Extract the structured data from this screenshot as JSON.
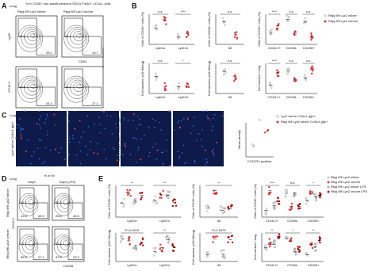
{
  "A": {
    "label": "A",
    "tissue": "Lung",
    "header": "% in CD45+ non-autofluorescent SSChi F4/80+ CD11c- cells",
    "groups": [
      "Rbpj fl/fl Lyz2 wt/cre",
      "Rbpj fl/fl Lyz2 cre/cre"
    ],
    "axes": [
      "Ly6C",
      "CD64",
      "CD16.2",
      "CD206"
    ],
    "gates": [
      [
        "44.5",
        "25.0"
      ],
      [
        "51.1",
        "19.7"
      ],
      [
        "10.9",
        "44.3"
      ],
      [
        "12.1",
        "27.1"
      ]
    ]
  },
  "B": {
    "label": "B",
    "legend": [
      "Rbpj fl/fl Lyz2 wt/cre",
      "Rbpj fl/fl Lyz2 cre/cre"
    ],
    "plots": [
      {
        "ylabel": "Cells of CD45+ cells (%)",
        "categories": [
          "Ly6Clo",
          "Ly6Chi"
        ],
        "sig": [
          "n.s.",
          "****"
        ]
      },
      {
        "ylabel": "Cells of CD45+ cells (%)",
        "categories": [
          "IM"
        ],
        "sig": [
          "n.s."
        ]
      },
      {
        "ylabel": "Cells of CD45+ cells (%)",
        "categories": [
          "CD16.2+",
          "CD206-",
          "CD206+"
        ],
        "sig": [
          "****",
          "n.s.",
          "n.s."
        ]
      },
      {
        "ylabel": "Cell number (x10^4/lung)",
        "categories": [
          "Ly6Clo",
          "Ly6Chi"
        ],
        "sig": [
          "n.s.",
          "*"
        ]
      },
      {
        "ylabel": "Cell number (x10^4/lung)",
        "categories": [
          "IM"
        ],
        "sig": [
          "n.s."
        ]
      },
      {
        "ylabel": "Cell number / lung",
        "categories": [
          "CD16.2+",
          "CD206-",
          "CD206+"
        ],
        "sig": [
          "****",
          "n.s.",
          "n.s."
        ]
      }
    ]
  },
  "C": {
    "label": "C",
    "tissue": "Lung",
    "stain": "CX3CR1 DAPI",
    "rows": [
      "Lyz2 wt/cre Cx3cr1 gfp/+",
      "Rbpj fl/fl Lyz2 wt/cre Cx3cr1 gfp/+"
    ],
    "legend": [
      "Lyz2 wt/cre Cx3cr1 gfp/+",
      "Rbpj fl/fl Lyz2 wt/cre Cx3cr1 gfp/+"
    ],
    "ylabel": "Mean density",
    "xlabel": "CX3CR1-positive",
    "sig": "**"
  },
  "D": {
    "label": "D",
    "tissue": "Lung",
    "header": "% in IM",
    "columns": [
      "Day0",
      "Day4 (LPS)"
    ],
    "rows": [
      "Rbpj fl/fl Lyz2 wt/cre",
      "Rbpj fl/fl Lyz2 cre/cre"
    ],
    "xaxis": "CD206",
    "yaxis": "CD16.2",
    "gates": [
      [
        "41.1",
        "46.9",
        "12.8"
      ],
      [
        "30.3",
        "43.5",
        "26.8"
      ],
      [
        "17.7",
        "27.1",
        "55.5"
      ],
      [
        "37.4",
        "23.2",
        "37.5"
      ]
    ]
  },
  "E": {
    "label": "E",
    "legend": [
      "Rbpj fl/fl Lyz2 wt/cre",
      "Rbpj fl/fl Lyz2 cre/cre",
      "Rbpj fl/fl Lyz2 wt/cre LPS",
      "Rbpj fl/fl Lyz2 cre/cre LPS"
    ],
    "plots": [
      {
        "ylabel": "Cells of CD45+ cells (%)",
        "categories": [
          "Ly6Clo",
          "Ly6Chi"
        ],
        "sig": [
          "**",
          "**"
        ]
      },
      {
        "ylabel": "Cells of CD45+ cells (%)",
        "categories": [
          "IM"
        ],
        "sig": [
          "**"
        ]
      },
      {
        "ylabel": "Cells of CD45+ cells (%)",
        "categories": [
          "CD16.2+",
          "CD206-",
          "CD206+"
        ],
        "sig": [
          "****",
          "n.s.",
          "*"
        ]
      },
      {
        "ylabel": "Cell number (x10^4/lung)",
        "categories": [
          "Ly6Clo",
          "Ly6Chi"
        ],
        "sig": [
          "P=0.0223",
          "**"
        ]
      },
      {
        "ylabel": "Cell number (x10^4/lung)",
        "categories": [
          "IM"
        ],
        "sig": [
          "P=0.0675"
        ]
      },
      {
        "ylabel": "Cell number / lung",
        "categories": [
          "CD16.2+",
          "CD206-",
          "CD206+"
        ],
        "sig": [
          "**",
          "*",
          "**"
        ]
      }
    ]
  }
}
